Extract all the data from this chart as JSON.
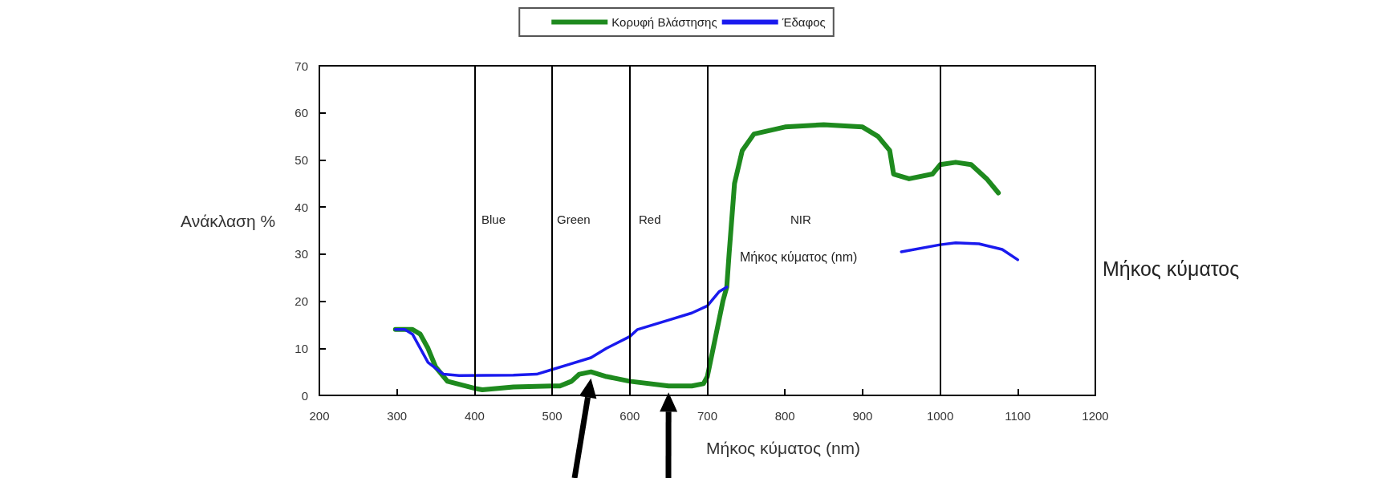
{
  "chart_data": {
    "type": "line",
    "ylabel": "Ανάκλαση %",
    "xlabel": "Μήκος κύματος (nm)",
    "xlim": [
      200,
      1200
    ],
    "xticks": [
      200,
      300,
      400,
      500,
      600,
      700,
      800,
      900,
      1000,
      1100,
      1200
    ],
    "ylim": [
      0,
      70
    ],
    "yticks": [
      0,
      10,
      20,
      30,
      40,
      50,
      60,
      70
    ],
    "grid": false,
    "legend": "top",
    "marker": "none",
    "line_style": "solid",
    "series": [
      {
        "name": "Κορυφή Βλάστησης",
        "color": "#1e8a1e",
        "x": [
          298,
          320,
          330,
          340,
          350,
          360,
          365,
          400,
          410,
          450,
          500,
          510,
          525,
          535,
          550,
          570,
          600,
          650,
          680,
          695,
          700,
          710,
          720,
          725,
          728,
          735,
          745,
          760,
          800,
          850,
          900,
          920,
          935,
          940,
          960,
          990,
          1000,
          1020,
          1040,
          1060,
          1075
        ],
        "values": [
          14,
          14,
          13,
          10,
          6,
          4,
          3,
          1.5,
          1.2,
          1.8,
          2,
          2,
          3,
          4.5,
          5,
          4,
          3,
          2,
          2,
          2.5,
          4,
          12,
          20,
          23,
          30,
          45,
          52,
          55.5,
          57,
          57.5,
          57,
          55,
          52,
          47,
          46,
          47,
          49,
          49.5,
          49,
          46,
          43
        ]
      },
      {
        "name": "Έδαφος",
        "color": "#1a1aee",
        "x": [
          298,
          310,
          320,
          340,
          360,
          380,
          450,
          480,
          500,
          520,
          550,
          570,
          600,
          610,
          650,
          680,
          700,
          715,
          725,
          735,
          950,
          1000,
          1020,
          1050,
          1080,
          1100
        ],
        "values": [
          14,
          14,
          13,
          7,
          4.5,
          4.2,
          4.3,
          4.5,
          5.5,
          6.5,
          8,
          10,
          12.5,
          14,
          16,
          17.5,
          19,
          22,
          23,
          null,
          30.5,
          32,
          32.4,
          32.2,
          31,
          28.8
        ]
      }
    ],
    "ref_lines": [
      {
        "axis": "x",
        "value": 400
      },
      {
        "axis": "x",
        "value": 500
      },
      {
        "axis": "x",
        "value": 600
      },
      {
        "axis": "x",
        "value": 700
      },
      {
        "axis": "x",
        "value": 1000
      }
    ],
    "annotations": [
      "Blue",
      "Green",
      "Red",
      "NIR",
      "Μήκος κύματος (nm)",
      "Μήκος κύματος"
    ]
  }
}
